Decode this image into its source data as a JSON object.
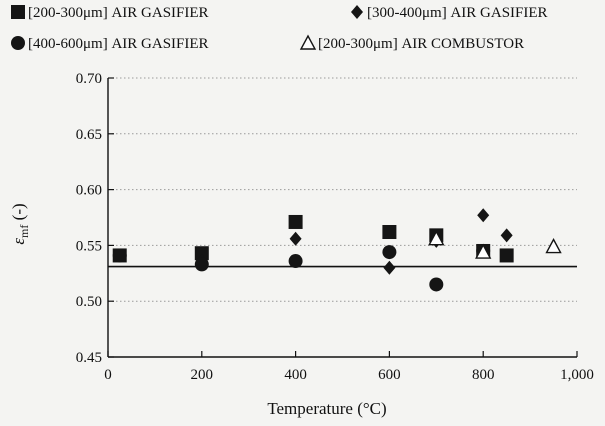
{
  "chart_data": {
    "type": "scatter",
    "title": "",
    "xlabel": "Temperature (°C)",
    "ylabel_main": "ε",
    "ylabel_sub": "mf",
    "ylabel_suffix": " (-)",
    "xlim": [
      0,
      1000
    ],
    "ylim": [
      0.45,
      0.7
    ],
    "x_ticks": [
      0,
      200,
      400,
      600,
      800,
      1000
    ],
    "x_tick_labels": [
      "0",
      "200",
      "400",
      "600",
      "800",
      "1,000"
    ],
    "y_ticks": [
      0.45,
      0.5,
      0.55,
      0.6,
      0.65,
      0.7
    ],
    "y_tick_labels": [
      "0.45",
      "0.50",
      "0.55",
      "0.60",
      "0.65",
      "0.70"
    ],
    "grid": "horizontal-dotted",
    "legend_position": "top",
    "reference_line": {
      "y": 0.531
    },
    "series": [
      {
        "name": "[200-300μm] AIR GASIFIER",
        "marker": "square",
        "points": [
          [
            25,
            0.541
          ],
          [
            200,
            0.543
          ],
          [
            400,
            0.571
          ],
          [
            600,
            0.562
          ],
          [
            700,
            0.559
          ],
          [
            800,
            0.545
          ],
          [
            850,
            0.541
          ]
        ]
      },
      {
        "name": "[300-400μm] AIR GASIFIER",
        "marker": "diamond",
        "points": [
          [
            25,
            0.541
          ],
          [
            200,
            0.536
          ],
          [
            400,
            0.556
          ],
          [
            600,
            0.53
          ],
          [
            700,
            0.554
          ],
          [
            800,
            0.577
          ],
          [
            850,
            0.559
          ]
        ]
      },
      {
        "name": "[400-600μm] AIR GASIFIER",
        "marker": "circle",
        "points": [
          [
            25,
            0.541
          ],
          [
            200,
            0.533
          ],
          [
            400,
            0.536
          ],
          [
            600,
            0.544
          ],
          [
            700,
            0.515
          ],
          [
            800,
            0.545
          ]
        ]
      },
      {
        "name": "[200-300μm] AIR COMBUSTOR",
        "marker": "triangle-open",
        "points": [
          [
            700,
            0.556
          ],
          [
            800,
            0.544
          ],
          [
            950,
            0.549
          ]
        ]
      }
    ]
  },
  "colors": {
    "marker": "#151515",
    "axis": "#111111",
    "grid": "#9a9a9a",
    "background": "#f4f4f2"
  }
}
